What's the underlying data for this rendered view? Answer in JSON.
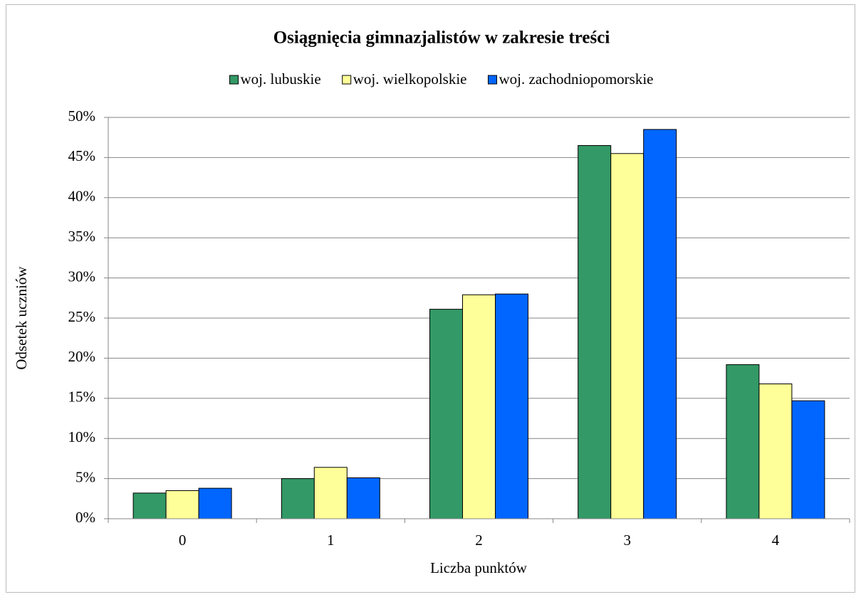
{
  "chart_data": {
    "type": "bar",
    "title": "Osiągnięcia gimnazjalistów w zakresie treści",
    "xlabel": "Liczba punktów",
    "ylabel": "Odsetek uczniów",
    "categories": [
      "0",
      "1",
      "2",
      "3",
      "4"
    ],
    "series": [
      {
        "name": "woj. lubuskie",
        "color": "#339966",
        "values": [
          3.2,
          5.0,
          26.1,
          46.5,
          19.2
        ]
      },
      {
        "name": "woj. wielkopolskie",
        "color": "#ffff99",
        "values": [
          3.5,
          6.4,
          27.9,
          45.5,
          16.8
        ]
      },
      {
        "name": "woj. zachodniopomorskie",
        "color": "#0066ff",
        "values": [
          3.8,
          5.1,
          28.0,
          48.5,
          14.7
        ]
      }
    ],
    "ylim": [
      0,
      50
    ],
    "yticks": [
      {
        "value": 0,
        "label": "0%"
      },
      {
        "value": 5,
        "label": "5%"
      },
      {
        "value": 10,
        "label": "10%"
      },
      {
        "value": 15,
        "label": "15%"
      },
      {
        "value": 20,
        "label": "20%"
      },
      {
        "value": 25,
        "label": "25%"
      },
      {
        "value": 30,
        "label": "30%"
      },
      {
        "value": 35,
        "label": "35%"
      },
      {
        "value": 40,
        "label": "40%"
      },
      {
        "value": 45,
        "label": "45%"
      },
      {
        "value": 50,
        "label": "50%"
      }
    ],
    "grid": true,
    "legend": "top"
  }
}
